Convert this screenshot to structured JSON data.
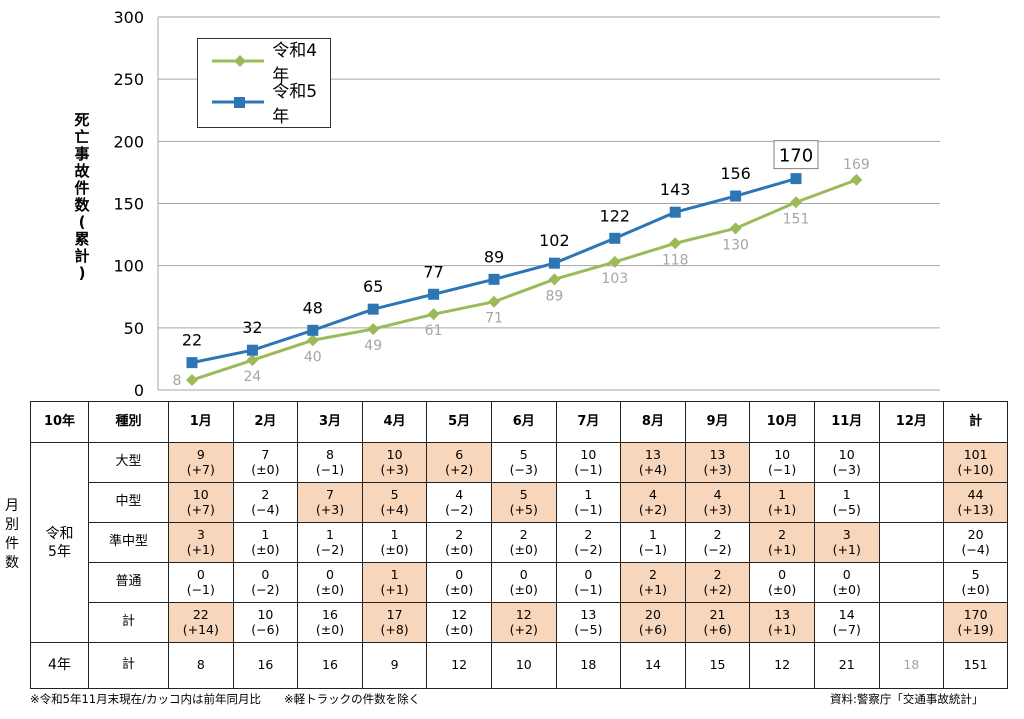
{
  "chart_data": {
    "type": "line",
    "ylabel": "死亡事故件数(累計)",
    "ylim": [
      0,
      300
    ],
    "yticks": [
      0,
      50,
      100,
      150,
      200,
      250,
      300
    ],
    "grid": true,
    "legend_position": "top-left",
    "series": [
      {
        "name": "令和4年",
        "color": "#9bbb59",
        "marker": "diamond",
        "values": [
          8,
          24,
          40,
          49,
          61,
          71,
          89,
          103,
          118,
          130,
          151,
          169
        ]
      },
      {
        "name": "令和5年",
        "color": "#2e75b6",
        "marker": "square",
        "values": [
          22,
          32,
          48,
          65,
          77,
          89,
          102,
          122,
          143,
          156,
          170
        ]
      }
    ],
    "annotations": [
      {
        "text": "170",
        "boxed": true,
        "series": "令和5年",
        "index": 10
      }
    ]
  },
  "table": {
    "headers": [
      "10年",
      "種別",
      "1月",
      "2月",
      "3月",
      "4月",
      "5月",
      "6月",
      "7月",
      "8月",
      "9月",
      "10月",
      "11月",
      "12月",
      "計"
    ],
    "group_label": "令和\n5年",
    "rows": [
      {
        "label": "大型",
        "cells": [
          "9\n(+7)",
          "7\n(±0)",
          "8\n(−1)",
          "10\n(+3)",
          "6\n(+2)",
          "5\n(−3)",
          "10\n(−1)",
          "13\n(+4)",
          "13\n(+3)",
          "10\n(−1)",
          "10\n(−3)",
          "",
          "101\n(+10)"
        ],
        "highlight": [
          true,
          false,
          false,
          true,
          true,
          false,
          false,
          true,
          true,
          false,
          false,
          false,
          true
        ]
      },
      {
        "label": "中型",
        "cells": [
          "10\n(+7)",
          "2\n(−4)",
          "7\n(+3)",
          "5\n(+4)",
          "4\n(−2)",
          "5\n(+5)",
          "1\n(−1)",
          "4\n(+2)",
          "4\n(+3)",
          "1\n(+1)",
          "1\n(−5)",
          "",
          "44\n(+13)"
        ],
        "highlight": [
          true,
          false,
          true,
          true,
          false,
          true,
          false,
          true,
          true,
          true,
          false,
          false,
          true
        ]
      },
      {
        "label": "準中型",
        "cells": [
          "3\n(+1)",
          "1\n(±0)",
          "1\n(−2)",
          "1\n(±0)",
          "2\n(±0)",
          "2\n(±0)",
          "2\n(−2)",
          "1\n(−1)",
          "2\n(−2)",
          "2\n(+1)",
          "3\n(+1)",
          "",
          "20\n(−4)"
        ],
        "highlight": [
          true,
          false,
          false,
          false,
          false,
          false,
          false,
          false,
          false,
          true,
          true,
          false,
          false
        ]
      },
      {
        "label": "普通",
        "cells": [
          "0\n(−1)",
          "0\n(−2)",
          "0\n(±0)",
          "1\n(+1)",
          "0\n(±0)",
          "0\n(±0)",
          "0\n(−1)",
          "2\n(+1)",
          "2\n(+2)",
          "0\n(±0)",
          "0\n(±0)",
          "",
          "5\n(±0)"
        ],
        "highlight": [
          false,
          false,
          false,
          true,
          false,
          false,
          false,
          true,
          true,
          false,
          false,
          false,
          false
        ]
      },
      {
        "label": "計",
        "cells": [
          "22\n(+14)",
          "10\n(−6)",
          "16\n(±0)",
          "17\n(+8)",
          "12\n(±0)",
          "12\n(+2)",
          "13\n(−5)",
          "20\n(+6)",
          "21\n(+6)",
          "13\n(+1)",
          "14\n(−7)",
          "",
          "170\n(+19)"
        ],
        "highlight": [
          true,
          false,
          false,
          true,
          false,
          true,
          false,
          true,
          true,
          true,
          false,
          false,
          true
        ]
      }
    ],
    "prev_row": {
      "group": "4年",
      "label": "計",
      "cells": [
        "8",
        "16",
        "16",
        "9",
        "12",
        "10",
        "18",
        "14",
        "15",
        "12",
        "21",
        "18",
        "151"
      ],
      "dim": [
        false,
        false,
        false,
        false,
        false,
        false,
        false,
        false,
        false,
        false,
        false,
        true,
        false
      ]
    },
    "side_label": "月別件数"
  },
  "notes": {
    "left": "※令和5年11月末現在/カッコ内は前年同月比　　※軽トラックの件数を除く",
    "right": "資料:警察庁「交通事故統計」"
  }
}
